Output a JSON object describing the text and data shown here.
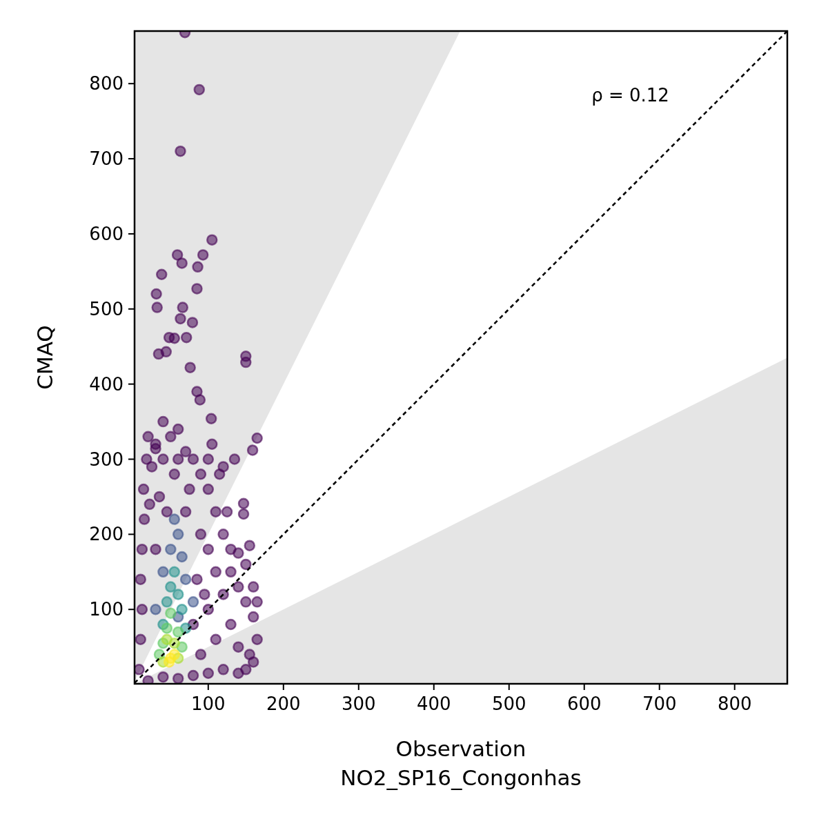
{
  "chart_data": {
    "type": "scatter",
    "xlabel": "Observation\nNO2_SP16_Congonhas",
    "ylabel": "CMAQ",
    "annotations": [
      "ρ = 0.12"
    ],
    "xlim": [
      2,
      870
    ],
    "ylim": [
      1,
      870
    ],
    "xticks": [
      100,
      200,
      300,
      400,
      500,
      600,
      700,
      800
    ],
    "yticks": [
      100,
      200,
      300,
      400,
      500,
      600,
      700,
      800
    ],
    "grid": false,
    "series": [
      {
        "marker": "circle",
        "x": [
          69,
          88,
          63,
          105,
          59,
          65,
          93,
          86,
          85,
          38,
          31,
          32,
          66,
          63,
          79,
          71,
          48,
          55,
          44,
          34,
          76,
          150,
          150,
          85,
          89,
          104,
          165,
          159,
          147,
          147,
          30,
          8,
          10,
          12,
          10,
          12,
          15,
          14,
          18,
          20,
          25,
          22,
          30,
          35,
          40,
          50,
          60,
          70,
          80,
          90,
          100,
          110,
          120,
          130,
          40,
          130,
          140,
          150,
          160,
          165,
          160,
          150,
          140,
          130,
          120,
          110,
          100,
          90,
          150,
          160,
          165,
          155,
          140,
          125,
          115,
          100,
          105,
          120,
          135,
          20,
          40,
          60,
          80,
          100,
          120,
          140,
          155,
          110,
          90,
          80,
          100,
          85,
          95,
          70,
          75,
          55,
          30,
          60,
          45,
          55,
          60,
          50,
          65,
          40,
          70,
          30,
          80,
          60,
          55,
          50,
          60,
          45,
          65,
          40,
          70,
          50,
          45,
          60,
          40,
          65,
          35,
          45,
          55,
          40,
          60,
          50,
          55,
          48
        ],
        "values": [
          868,
          792,
          710,
          592,
          572,
          561,
          572,
          556,
          527,
          546,
          520,
          502,
          502,
          487,
          482,
          462,
          462,
          461,
          443,
          440,
          422,
          437,
          429,
          390,
          379,
          354,
          328,
          312,
          241,
          227,
          314,
          20,
          60,
          100,
          140,
          180,
          220,
          260,
          300,
          330,
          290,
          240,
          180,
          250,
          300,
          330,
          340,
          310,
          300,
          280,
          260,
          230,
          200,
          180,
          350,
          150,
          130,
          110,
          90,
          60,
          30,
          20,
          50,
          80,
          120,
          150,
          180,
          200,
          160,
          130,
          110,
          185,
          175,
          230,
          280,
          300,
          320,
          290,
          300,
          5,
          10,
          8,
          12,
          15,
          20,
          15,
          40,
          60,
          40,
          80,
          100,
          140,
          120,
          230,
          260,
          280,
          320,
          300,
          230,
          220,
          200,
          180,
          170,
          150,
          140,
          100,
          110,
          90,
          150,
          130,
          120,
          110,
          100,
          80,
          75,
          95,
          75,
          70,
          55,
          50,
          40,
          60,
          55,
          30,
          35,
          35,
          40,
          30
        ],
        "colors": [
          "#440154",
          "#440154",
          "#440154",
          "#440154",
          "#440154",
          "#440154",
          "#440154",
          "#440154",
          "#440154",
          "#440154",
          "#440154",
          "#440154",
          "#440154",
          "#440154",
          "#440154",
          "#440154",
          "#440154",
          "#440154",
          "#440154",
          "#440154",
          "#440154",
          "#440154",
          "#440154",
          "#440154",
          "#440154",
          "#440154",
          "#440154",
          "#440154",
          "#440154",
          "#440154",
          "#440154",
          "#440154",
          "#440154",
          "#440154",
          "#440154",
          "#440154",
          "#440154",
          "#440154",
          "#440154",
          "#440154",
          "#440154",
          "#440154",
          "#440154",
          "#440154",
          "#440154",
          "#440154",
          "#440154",
          "#440154",
          "#440154",
          "#440154",
          "#440154",
          "#440154",
          "#440154",
          "#440154",
          "#440154",
          "#440154",
          "#440154",
          "#440154",
          "#440154",
          "#440154",
          "#440154",
          "#440154",
          "#440154",
          "#440154",
          "#440154",
          "#440154",
          "#440154",
          "#440154",
          "#440154",
          "#440154",
          "#440154",
          "#440154",
          "#440154",
          "#440154",
          "#440154",
          "#440154",
          "#440154",
          "#440154",
          "#440154",
          "#440154",
          "#440154",
          "#440154",
          "#440154",
          "#440154",
          "#440154",
          "#440154",
          "#440154",
          "#440154",
          "#440154",
          "#440154",
          "#440154",
          "#440154",
          "#440154",
          "#440154",
          "#440154",
          "#440154",
          "#440154",
          "#440154",
          "#440154",
          "#3b528b",
          "#3b528b",
          "#3b528b",
          "#3b528b",
          "#3b528b",
          "#3b528b",
          "#3b528b",
          "#3b528b",
          "#3b528b",
          "#21918c",
          "#21918c",
          "#21918c",
          "#21918c",
          "#21918c",
          "#21918c",
          "#21918c",
          "#5ec962",
          "#5ec962",
          "#5ec962",
          "#5ec962",
          "#5ec962",
          "#5ec962",
          "#aadc32",
          "#aadc32",
          "#aadc32",
          "#aadc32",
          "#fde725",
          "#fde725",
          "#fde725"
        ]
      },
      {
        "type": "line",
        "color": "#000000",
        "line_style": "dashed",
        "x": [
          2,
          435,
          870
        ],
        "values": [
          2,
          435,
          870
        ],
        "lower": [
          1,
          217.5,
          435
        ],
        "upper": [
          4,
          870,
          870
        ]
      }
    ]
  }
}
